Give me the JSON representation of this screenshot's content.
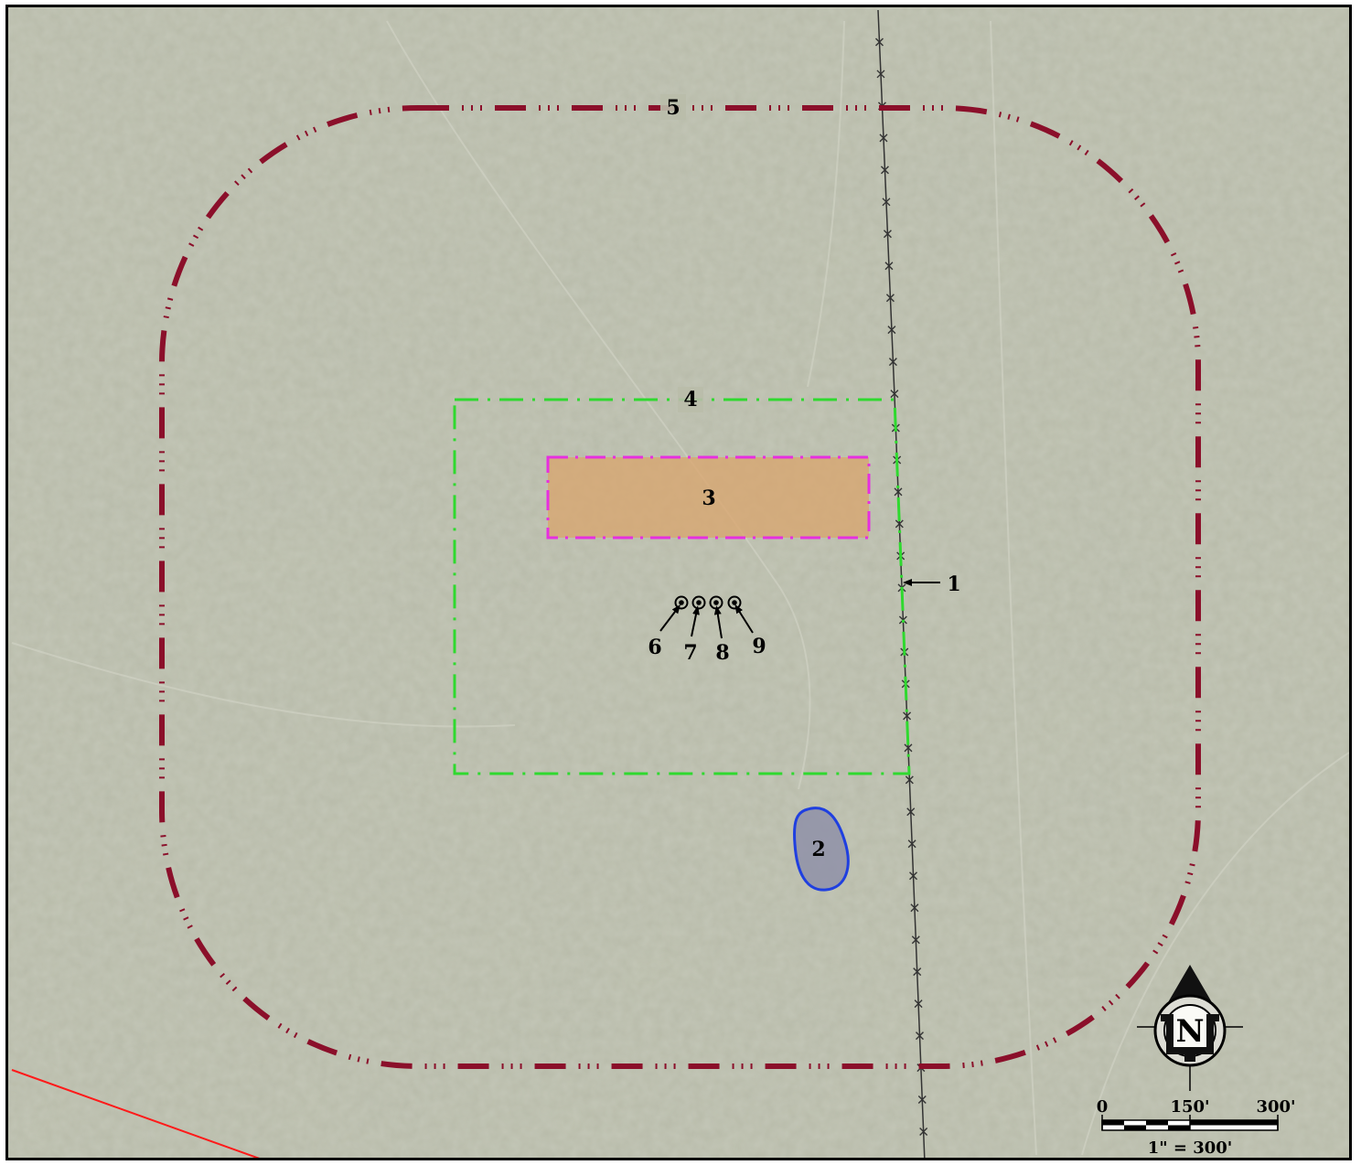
{
  "map": {
    "labels": {
      "fence_line": "1",
      "pond": "2",
      "pad": "3",
      "disturbance_area": "4",
      "buffer_boundary": "5",
      "well_a": "6",
      "well_b": "7",
      "well_c": "8",
      "well_d": "9"
    },
    "colors": {
      "buffer_boundary": "#8b0f2a",
      "disturbance_area": "#2fd92f",
      "pad_outline": "#e62fe0",
      "pad_fill": "#d9a46c",
      "pond_outline": "#1f3fe0",
      "pond_fill": "#8f90a8",
      "section_line": "#ff1a1a",
      "terrain": "#b9bcaa"
    }
  },
  "north_arrow": {
    "letter": "N"
  },
  "scale_bar": {
    "tick_0": "0",
    "tick_mid": "150'",
    "tick_end": "300'",
    "ratio": "1\" = 300'"
  }
}
